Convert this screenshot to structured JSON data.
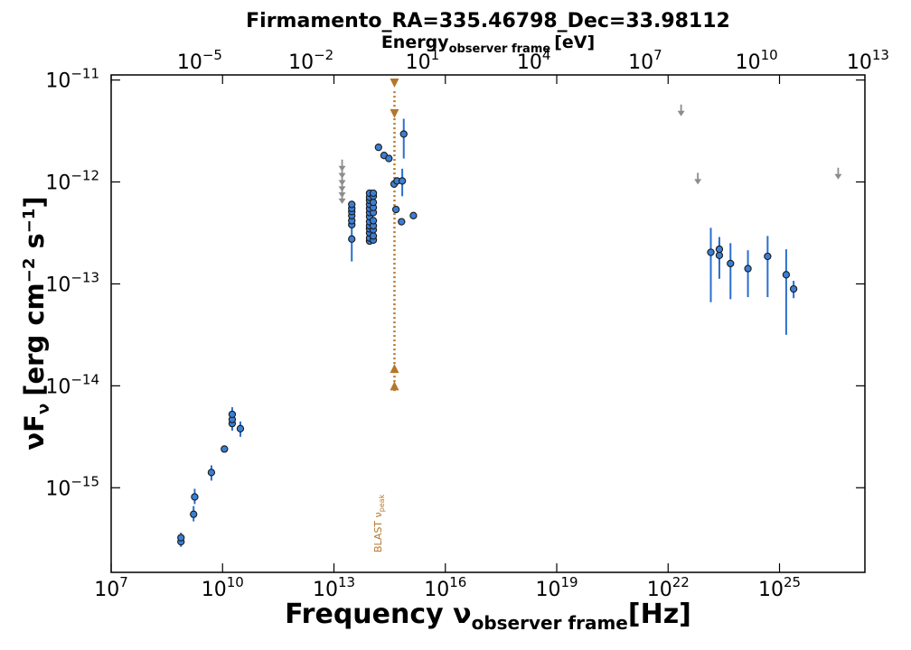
{
  "chart_data": {
    "type": "scatter",
    "title": "Firmamento_RA=335.46798_Dec=33.98112",
    "top_axis": {
      "label_main": "Energy",
      "label_sub": "observer frame",
      "label_unit": "[eV]",
      "ticks": [
        {
          "base": "10",
          "exp": "−5",
          "value": -5
        },
        {
          "base": "10",
          "exp": "−2",
          "value": -2
        },
        {
          "base": "10",
          "exp": "1",
          "value": 1
        },
        {
          "base": "10",
          "exp": "4",
          "value": 4
        },
        {
          "base": "10",
          "exp": "7",
          "value": 7
        },
        {
          "base": "10",
          "exp": "10",
          "value": 10
        },
        {
          "base": "10",
          "exp": "13",
          "value": 13
        }
      ]
    },
    "x_axis": {
      "label_main": "Frequency ν",
      "label_sub": "observer frame",
      "label_unit": "[Hz]",
      "scale": "log",
      "range_log": [
        7,
        27.3
      ],
      "ticks": [
        {
          "base": "10",
          "exp": "7",
          "value": 7
        },
        {
          "base": "10",
          "exp": "10",
          "value": 10
        },
        {
          "base": "10",
          "exp": "13",
          "value": 13
        },
        {
          "base": "10",
          "exp": "16",
          "value": 16
        },
        {
          "base": "10",
          "exp": "19",
          "value": 19
        },
        {
          "base": "10",
          "exp": "22",
          "value": 22
        },
        {
          "base": "10",
          "exp": "25",
          "value": 25
        }
      ]
    },
    "y_axis": {
      "label_main": "νF",
      "label_sub": "ν",
      "label_unit": "[erg cm",
      "label_exp1": "−2",
      "label_mid": " s",
      "label_exp2": "−1",
      "label_close": "]",
      "scale": "log",
      "range_log": [
        -15.83,
        -10.95
      ],
      "ticks": [
        {
          "base": "10",
          "exp": "−11",
          "value": -11
        },
        {
          "base": "10",
          "exp": "−12",
          "value": -12
        },
        {
          "base": "10",
          "exp": "−13",
          "value": -13
        },
        {
          "base": "10",
          "exp": "−14",
          "value": -14
        },
        {
          "base": "10",
          "exp": "−15",
          "value": -15
        }
      ]
    },
    "series": [
      {
        "name": "detections",
        "color": "#3a7fd5",
        "error_color": "#2a6fcf",
        "points": [
          {
            "logx": 8.88,
            "logy": -15.53,
            "lo": -15.58,
            "hi": -15.48
          },
          {
            "logx": 8.88,
            "logy": -15.49,
            "lo": -15.53,
            "hi": -15.44
          },
          {
            "logx": 9.22,
            "logy": -15.26,
            "lo": -15.33,
            "hi": -15.18
          },
          {
            "logx": 9.25,
            "logy": -15.09,
            "lo": -15.16,
            "hi": -15.01
          },
          {
            "logx": 9.7,
            "logy": -14.85,
            "lo": -14.93,
            "hi": -14.78
          },
          {
            "logx": 10.05,
            "logy": -14.62
          },
          {
            "logx": 10.26,
            "logy": -14.37,
            "lo": -14.44,
            "hi": -14.3
          },
          {
            "logx": 10.26,
            "logy": -14.33,
            "lo": -14.4,
            "hi": -14.26
          },
          {
            "logx": 10.26,
            "logy": -14.28,
            "lo": -14.35,
            "hi": -14.21
          },
          {
            "logx": 10.48,
            "logy": -14.42,
            "lo": -14.5,
            "hi": -14.35
          },
          {
            "logx": 13.48,
            "logy": -12.56,
            "lo": -12.78,
            "hi": -12.43
          },
          {
            "logx": 13.48,
            "logy": -12.42
          },
          {
            "logx": 13.48,
            "logy": -12.38
          },
          {
            "logx": 13.48,
            "logy": -12.33
          },
          {
            "logx": 13.48,
            "logy": -12.29
          },
          {
            "logx": 13.48,
            "logy": -12.26
          },
          {
            "logx": 13.48,
            "logy": -12.22
          },
          {
            "logx": 13.96,
            "logy": -12.58
          },
          {
            "logx": 13.96,
            "logy": -12.55
          },
          {
            "logx": 13.96,
            "logy": -12.5
          },
          {
            "logx": 13.96,
            "logy": -12.46
          },
          {
            "logx": 13.96,
            "logy": -12.43
          },
          {
            "logx": 13.96,
            "logy": -12.39
          },
          {
            "logx": 13.96,
            "logy": -12.34
          },
          {
            "logx": 13.96,
            "logy": -12.3
          },
          {
            "logx": 13.96,
            "logy": -12.26
          },
          {
            "logx": 13.96,
            "logy": -12.22
          },
          {
            "logx": 13.96,
            "logy": -12.18
          },
          {
            "logx": 13.96,
            "logy": -12.15
          },
          {
            "logx": 13.96,
            "logy": -12.11
          },
          {
            "logx": 14.06,
            "logy": -12.57
          },
          {
            "logx": 14.06,
            "logy": -12.53
          },
          {
            "logx": 14.06,
            "logy": -12.47
          },
          {
            "logx": 14.06,
            "logy": -12.43
          },
          {
            "logx": 14.06,
            "logy": -12.38
          },
          {
            "logx": 14.06,
            "logy": -12.3
          },
          {
            "logx": 14.06,
            "logy": -12.25
          },
          {
            "logx": 14.06,
            "logy": -12.2
          },
          {
            "logx": 14.06,
            "logy": -12.14
          },
          {
            "logx": 14.06,
            "logy": -12.11
          },
          {
            "logx": 14.2,
            "logy": -11.66
          },
          {
            "logx": 14.35,
            "logy": -11.74
          },
          {
            "logx": 14.48,
            "logy": -11.77
          },
          {
            "logx": 14.62,
            "logy": -12.02
          },
          {
            "logx": 14.7,
            "logy": -11.99
          },
          {
            "logx": 14.67,
            "logy": -12.27
          },
          {
            "logx": 14.82,
            "logy": -12.39
          },
          {
            "logx": 14.84,
            "logy": -11.99,
            "lo": -12.14,
            "hi": -11.87
          },
          {
            "logx": 14.88,
            "logy": -11.53,
            "lo": -11.77,
            "hi": -11.38
          },
          {
            "logx": 15.14,
            "logy": -12.33
          },
          {
            "logx": 23.15,
            "logy": -12.69,
            "lo": -13.18,
            "hi": -12.45
          },
          {
            "logx": 23.38,
            "logy": -12.72,
            "lo": -12.95,
            "hi": -12.58
          },
          {
            "logx": 23.38,
            "logy": -12.66,
            "lo": -12.8,
            "hi": -12.54
          },
          {
            "logx": 23.68,
            "logy": -12.8,
            "lo": -13.15,
            "hi": -12.6
          },
          {
            "logx": 24.15,
            "logy": -12.85,
            "lo": -13.13,
            "hi": -12.67
          },
          {
            "logx": 24.68,
            "logy": -12.73,
            "lo": -13.13,
            "hi": -12.53
          },
          {
            "logx": 25.18,
            "logy": -12.91,
            "lo": -13.5,
            "hi": -12.66
          },
          {
            "logx": 25.38,
            "logy": -13.05,
            "lo": -13.14,
            "hi": -12.97
          }
        ]
      },
      {
        "name": "upper limits",
        "color": "#8c8c8c",
        "points": [
          {
            "logx": 13.22,
            "logy": -11.86
          },
          {
            "logx": 13.22,
            "logy": -11.93
          },
          {
            "logx": 13.22,
            "logy": -12.0
          },
          {
            "logx": 13.22,
            "logy": -12.06
          },
          {
            "logx": 13.22,
            "logy": -12.12
          },
          {
            "logx": 13.22,
            "logy": -12.18
          },
          {
            "logx": 22.35,
            "logy": -11.32
          },
          {
            "logx": 22.8,
            "logy": -11.99
          },
          {
            "logx": 26.58,
            "logy": -11.94
          }
        ]
      }
    ],
    "peak_marker": {
      "label": "BLAST ν",
      "label_sub": "peak",
      "color": "#b5762c",
      "logx": 14.63,
      "logy_top": -11.11,
      "logy_bottom": -14.07,
      "triangles_down": [
        -11.03,
        -11.33
      ],
      "triangles_up": [
        -13.83,
        -14.0
      ]
    }
  }
}
